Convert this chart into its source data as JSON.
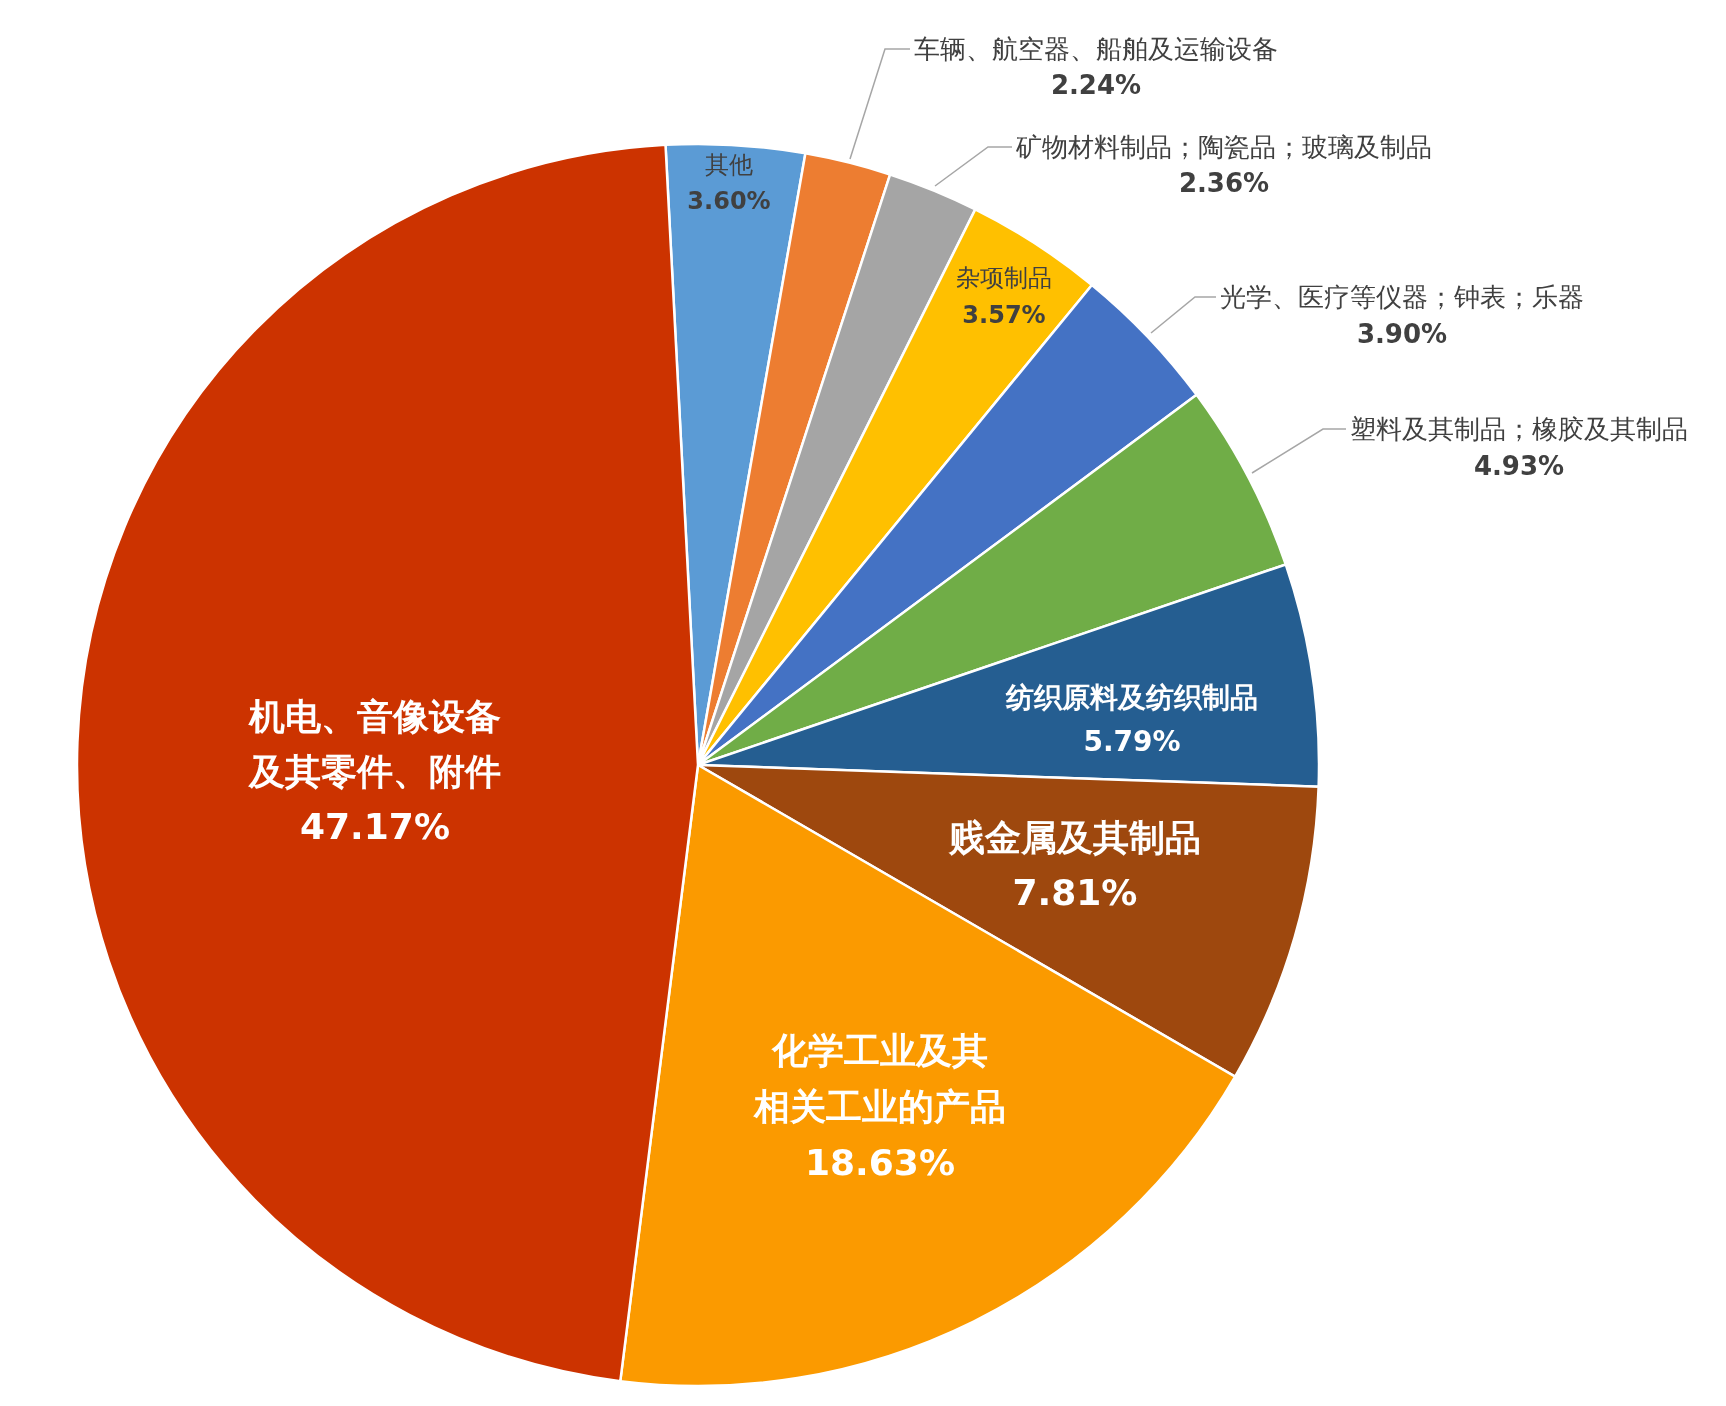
{
  "chart_data": {
    "type": "pie",
    "categories": [
      "其他",
      "车辆、航空器、船舶及运输设备",
      "矿物材料制品；陶瓷品；玻璃及制品",
      "杂项制品",
      "光学、医疗等仪器；钟表；乐器",
      "塑料及其制品；橡胶及其制品",
      "纺织原料及纺织制品",
      "贱金属及其制品",
      "化学工业及其相关工业的产品",
      "机电、音像设备及其零件、附件"
    ],
    "values": [
      3.6,
      2.24,
      2.36,
      3.57,
      3.9,
      4.93,
      5.79,
      7.81,
      18.63,
      47.17
    ],
    "colors": [
      "#5b9bd5",
      "#ed7d31",
      "#a5a5a5",
      "#ffc000",
      "#4472c4",
      "#70ad47",
      "#255e91",
      "#9e480e",
      "#fb9a00",
      "#cc3300"
    ],
    "value_labels": [
      "3.60%",
      "2.24%",
      "2.36%",
      "3.57%",
      "3.90%",
      "4.93%",
      "5.79%",
      "7.81%",
      "18.63%",
      "47.17%"
    ]
  }
}
